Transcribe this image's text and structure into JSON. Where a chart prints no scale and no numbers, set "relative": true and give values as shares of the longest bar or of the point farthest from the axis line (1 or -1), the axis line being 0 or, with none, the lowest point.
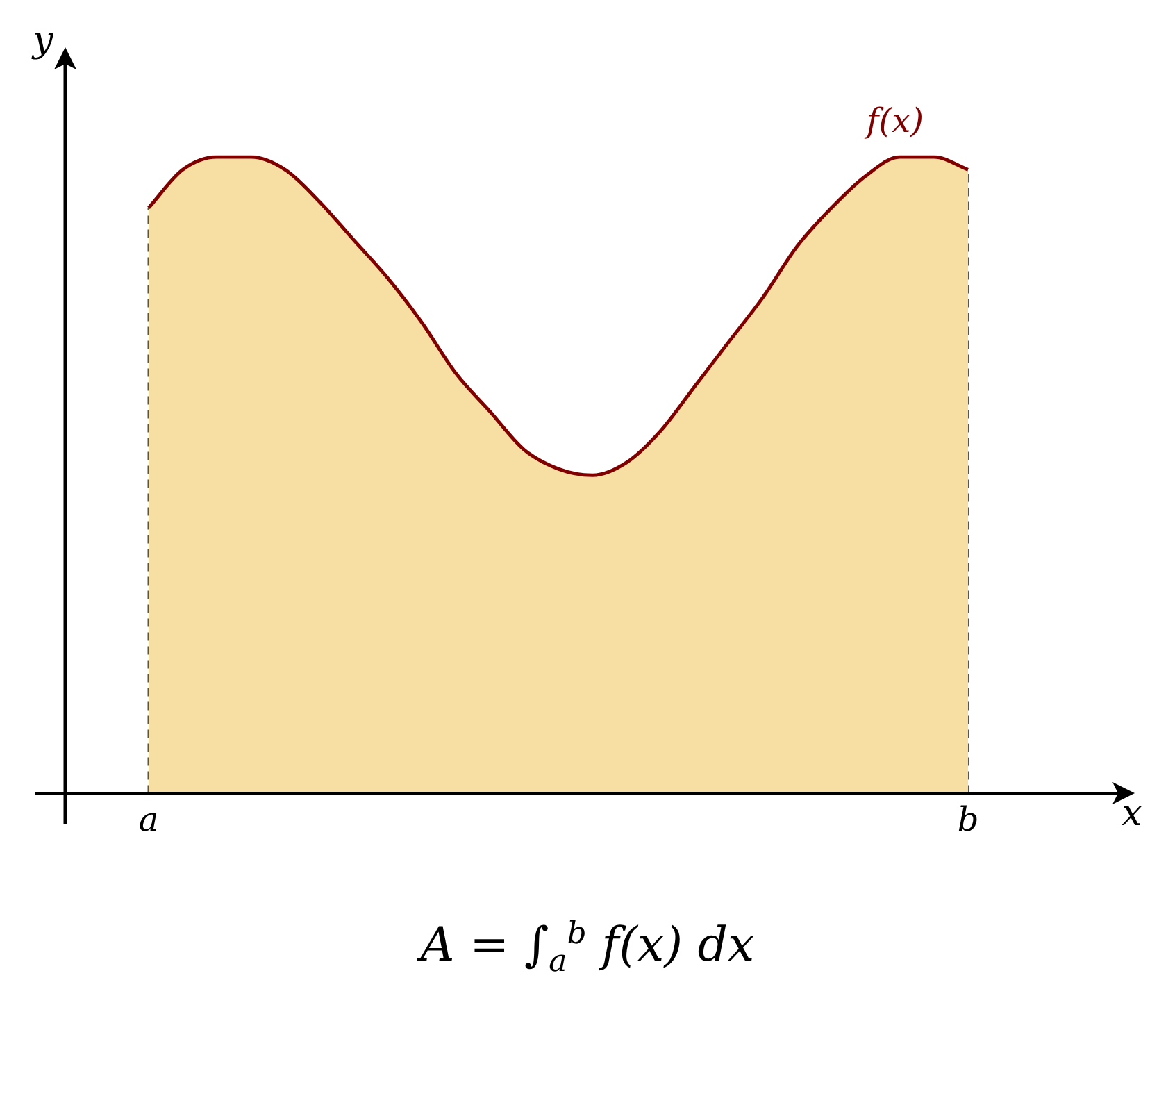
{
  "chart_data": {
    "type": "area",
    "relative": true,
    "xlabel": "x",
    "ylabel": "y",
    "grid": "x",
    "legend": false,
    "categories": [
      "a",
      null,
      null,
      null,
      null,
      null,
      null,
      null,
      null,
      null,
      null,
      null,
      null,
      null,
      null,
      null,
      null,
      null,
      null,
      null,
      null,
      null,
      null,
      null,
      "b"
    ],
    "series": [
      {
        "name": "f(x)",
        "color": "#800000",
        "values": [
          0.92,
          0.98,
          1.0,
          1.0,
          0.98,
          0.93,
          0.87,
          0.81,
          0.74,
          0.66,
          0.6,
          0.54,
          0.51,
          0.5,
          0.52,
          0.57,
          0.64,
          0.71,
          0.78,
          0.86,
          0.92,
          0.97,
          1.0,
          1.0,
          0.98
        ]
      }
    ],
    "annotations": [
      "A = ∫$_{a}$$^{b}$ f(x) dx"
    ]
  }
}
